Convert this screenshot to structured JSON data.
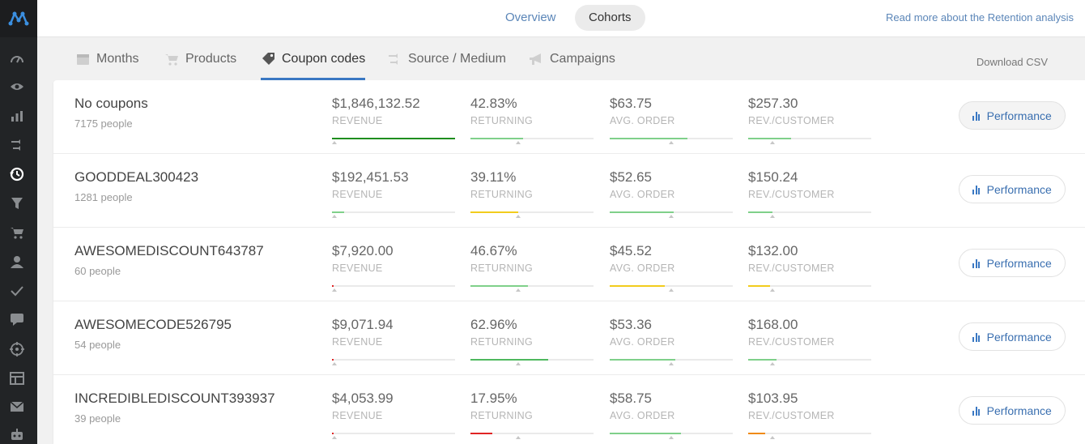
{
  "app": {
    "brand_color": "#3a78c3"
  },
  "sidebar": {
    "icons": [
      "gauge-icon",
      "eye-icon",
      "bar-chart-icon",
      "shuffle-icon",
      "history-icon",
      "funnel-icon",
      "cart-icon",
      "user-icon",
      "check-icon",
      "comment-icon",
      "crosshair-icon",
      "layout-icon",
      "mail-icon",
      "robot-icon"
    ],
    "active_index": 4
  },
  "topbar": {
    "tabs": [
      {
        "label": "Overview",
        "active": false
      },
      {
        "label": "Cohorts",
        "active": true
      }
    ],
    "read_more": "Read more about the Retention analysis"
  },
  "subtabs": {
    "items": [
      {
        "label": "Months",
        "icon": "calendar-icon",
        "active": false
      },
      {
        "label": "Products",
        "icon": "cart-icon",
        "active": false
      },
      {
        "label": "Coupon codes",
        "icon": "tag-icon",
        "active": true
      },
      {
        "label": "Source / Medium",
        "icon": "shuffle-icon",
        "active": false
      },
      {
        "label": "Campaigns",
        "icon": "megaphone-icon",
        "active": false
      }
    ],
    "download": "Download CSV"
  },
  "metric_labels": [
    "REVENUE",
    "RETURNING",
    "AVG. ORDER",
    "REV./CUSTOMER"
  ],
  "performance_label": "Performance",
  "colors": {
    "green": "#7fd08a",
    "dark_green": "#1e8e1e",
    "mid_green": "#4fb85f",
    "yellow": "#f2cc1d",
    "red": "#e02424",
    "orange": "#f08a12",
    "track": "#eaeaea"
  },
  "rows": [
    {
      "name": "No coupons",
      "people": "7175 people",
      "metrics": [
        {
          "value": "$1,846,132.52",
          "fill": 1.0,
          "marker": 0.02,
          "color": "#1e8e1e"
        },
        {
          "value": "42.83%",
          "fill": 0.43,
          "marker": 0.39,
          "color": "#7fd08a"
        },
        {
          "value": "$63.75",
          "fill": 0.63,
          "marker": 0.5,
          "color": "#7fd08a"
        },
        {
          "value": "$257.30",
          "fill": 0.35,
          "marker": 0.2,
          "color": "#7fd08a"
        }
      ]
    },
    {
      "name": "GOODDEAL300423",
      "people": "1281 people",
      "metrics": [
        {
          "value": "$192,451.53",
          "fill": 0.1,
          "marker": 0.02,
          "color": "#7fd08a"
        },
        {
          "value": "39.11%",
          "fill": 0.39,
          "marker": 0.39,
          "color": "#f2cc1d"
        },
        {
          "value": "$52.65",
          "fill": 0.52,
          "marker": 0.5,
          "color": "#7fd08a"
        },
        {
          "value": "$150.24",
          "fill": 0.2,
          "marker": 0.2,
          "color": "#7fd08a"
        }
      ]
    },
    {
      "name": "AWESOMEDISCOUNT643787",
      "people": "60 people",
      "metrics": [
        {
          "value": "$7,920.00",
          "fill": 0.01,
          "marker": 0.02,
          "color": "#e02424"
        },
        {
          "value": "46.67%",
          "fill": 0.47,
          "marker": 0.39,
          "color": "#7fd08a"
        },
        {
          "value": "$45.52",
          "fill": 0.45,
          "marker": 0.5,
          "color": "#f2cc1d"
        },
        {
          "value": "$132.00",
          "fill": 0.18,
          "marker": 0.2,
          "color": "#f2cc1d"
        }
      ]
    },
    {
      "name": "AWESOMECODE526795",
      "people": "54 people",
      "metrics": [
        {
          "value": "$9,071.94",
          "fill": 0.01,
          "marker": 0.02,
          "color": "#e02424"
        },
        {
          "value": "62.96%",
          "fill": 0.63,
          "marker": 0.39,
          "color": "#4fb85f"
        },
        {
          "value": "$53.36",
          "fill": 0.53,
          "marker": 0.5,
          "color": "#7fd08a"
        },
        {
          "value": "$168.00",
          "fill": 0.23,
          "marker": 0.2,
          "color": "#7fd08a"
        }
      ]
    },
    {
      "name": "INCREDIBLEDISCOUNT393937",
      "people": "39 people",
      "metrics": [
        {
          "value": "$4,053.99",
          "fill": 0.01,
          "marker": 0.02,
          "color": "#e02424"
        },
        {
          "value": "17.95%",
          "fill": 0.18,
          "marker": 0.39,
          "color": "#e02424"
        },
        {
          "value": "$58.75",
          "fill": 0.58,
          "marker": 0.5,
          "color": "#7fd08a"
        },
        {
          "value": "$103.95",
          "fill": 0.14,
          "marker": 0.2,
          "color": "#f08a12"
        }
      ]
    }
  ]
}
